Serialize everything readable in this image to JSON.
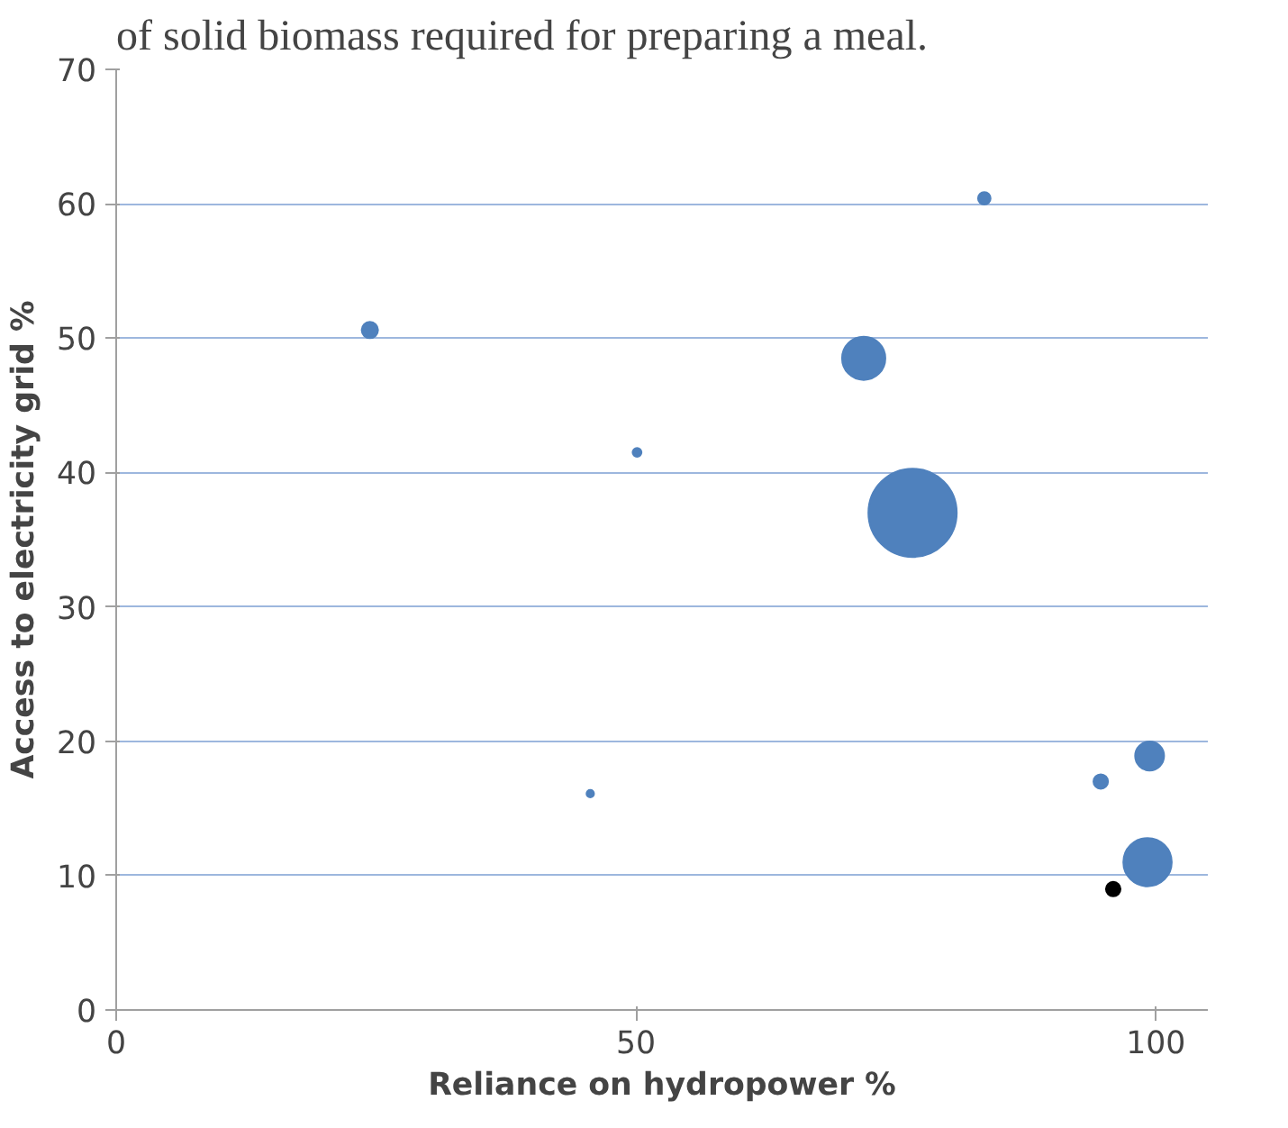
{
  "chart_data": {
    "type": "bubble",
    "title": "of solid biomass required for preparing a meal.",
    "xlabel": "Reliance on hydropower %",
    "ylabel": "Access to electricity grid %",
    "series": [
      {
        "color": "#4f81bd",
        "x": [
          24.4,
          50.1,
          71.9,
          76.6,
          83.5,
          45.6,
          94.7,
          99.4,
          99.2
        ],
        "values": [
          50.6,
          41.5,
          48.5,
          37.0,
          60.4,
          16.1,
          17.0,
          18.9,
          11.0
        ],
        "sizes": [
          0.034,
          0.01,
          0.24,
          1,
          0.02,
          0.007,
          0.027,
          0.107,
          0.3
        ]
      },
      {
        "color": "#000000",
        "x": [
          95.9
        ],
        "values": [
          9.0
        ],
        "sizes": [
          0.027
        ]
      }
    ],
    "xlim": [
      0,
      105
    ],
    "xticks": [
      0,
      50,
      100
    ],
    "ylim": [
      0,
      70
    ],
    "yticks": [
      0,
      10,
      20,
      30,
      40,
      50,
      60,
      70
    ],
    "grid": "y"
  }
}
